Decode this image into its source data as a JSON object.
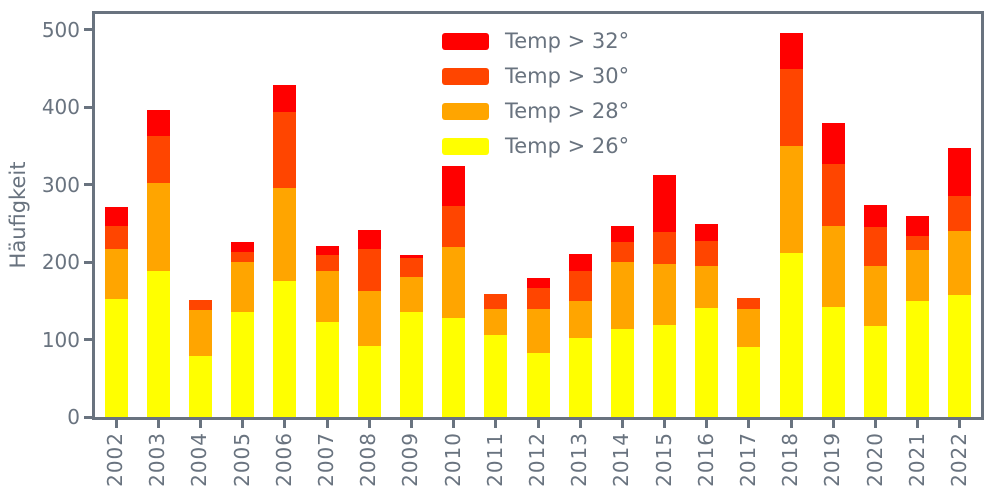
{
  "chart_data": {
    "type": "bar",
    "stacked": true,
    "title": "",
    "xlabel": "",
    "ylabel": "Häufigkeit",
    "ylim": [
      0,
      520
    ],
    "yticks": [
      0,
      100,
      200,
      300,
      400,
      500
    ],
    "grid": false,
    "legend_position": "upper-center-inside, no frame",
    "categories": [
      "2002",
      "2003",
      "2004",
      "2005",
      "2006",
      "2007",
      "2008",
      "2009",
      "2010",
      "2011",
      "2012",
      "2013",
      "2014",
      "2015",
      "2016",
      "2017",
      "2018",
      "2019",
      "2020",
      "2021",
      "2022"
    ],
    "series": [
      {
        "name": "Temp > 32°",
        "color": "#ff0000",
        "values": [
          24,
          34,
          0,
          13,
          36,
          12,
          24,
          4,
          52,
          0,
          14,
          23,
          20,
          73,
          22,
          0,
          46,
          54,
          29,
          26,
          62
        ]
      },
      {
        "name": "Temp > 30°",
        "color": "#ff4500",
        "values": [
          30,
          60,
          13,
          13,
          97,
          21,
          55,
          24,
          52,
          20,
          27,
          38,
          26,
          42,
          32,
          14,
          99,
          79,
          50,
          19,
          45
        ]
      },
      {
        "name": "Temp > 28°",
        "color": "#ffa500",
        "values": [
          65,
          114,
          59,
          64,
          121,
          66,
          70,
          45,
          92,
          33,
          56,
          48,
          87,
          78,
          54,
          50,
          139,
          105,
          78,
          65,
          83
        ]
      },
      {
        "name": "Temp > 26°",
        "color": "#ffff00",
        "values": [
          152,
          188,
          79,
          136,
          175,
          122,
          92,
          136,
          128,
          106,
          83,
          102,
          113,
          119,
          141,
          90,
          211,
          142,
          117,
          150,
          157
        ]
      }
    ],
    "stack_order_bottom_to_top": [
      "Temp > 26°",
      "Temp > 28°",
      "Temp > 30°",
      "Temp > 32°"
    ]
  },
  "style": {
    "text_color": "#69737f",
    "spine_color": "#69737f",
    "background": "#ffffff"
  }
}
